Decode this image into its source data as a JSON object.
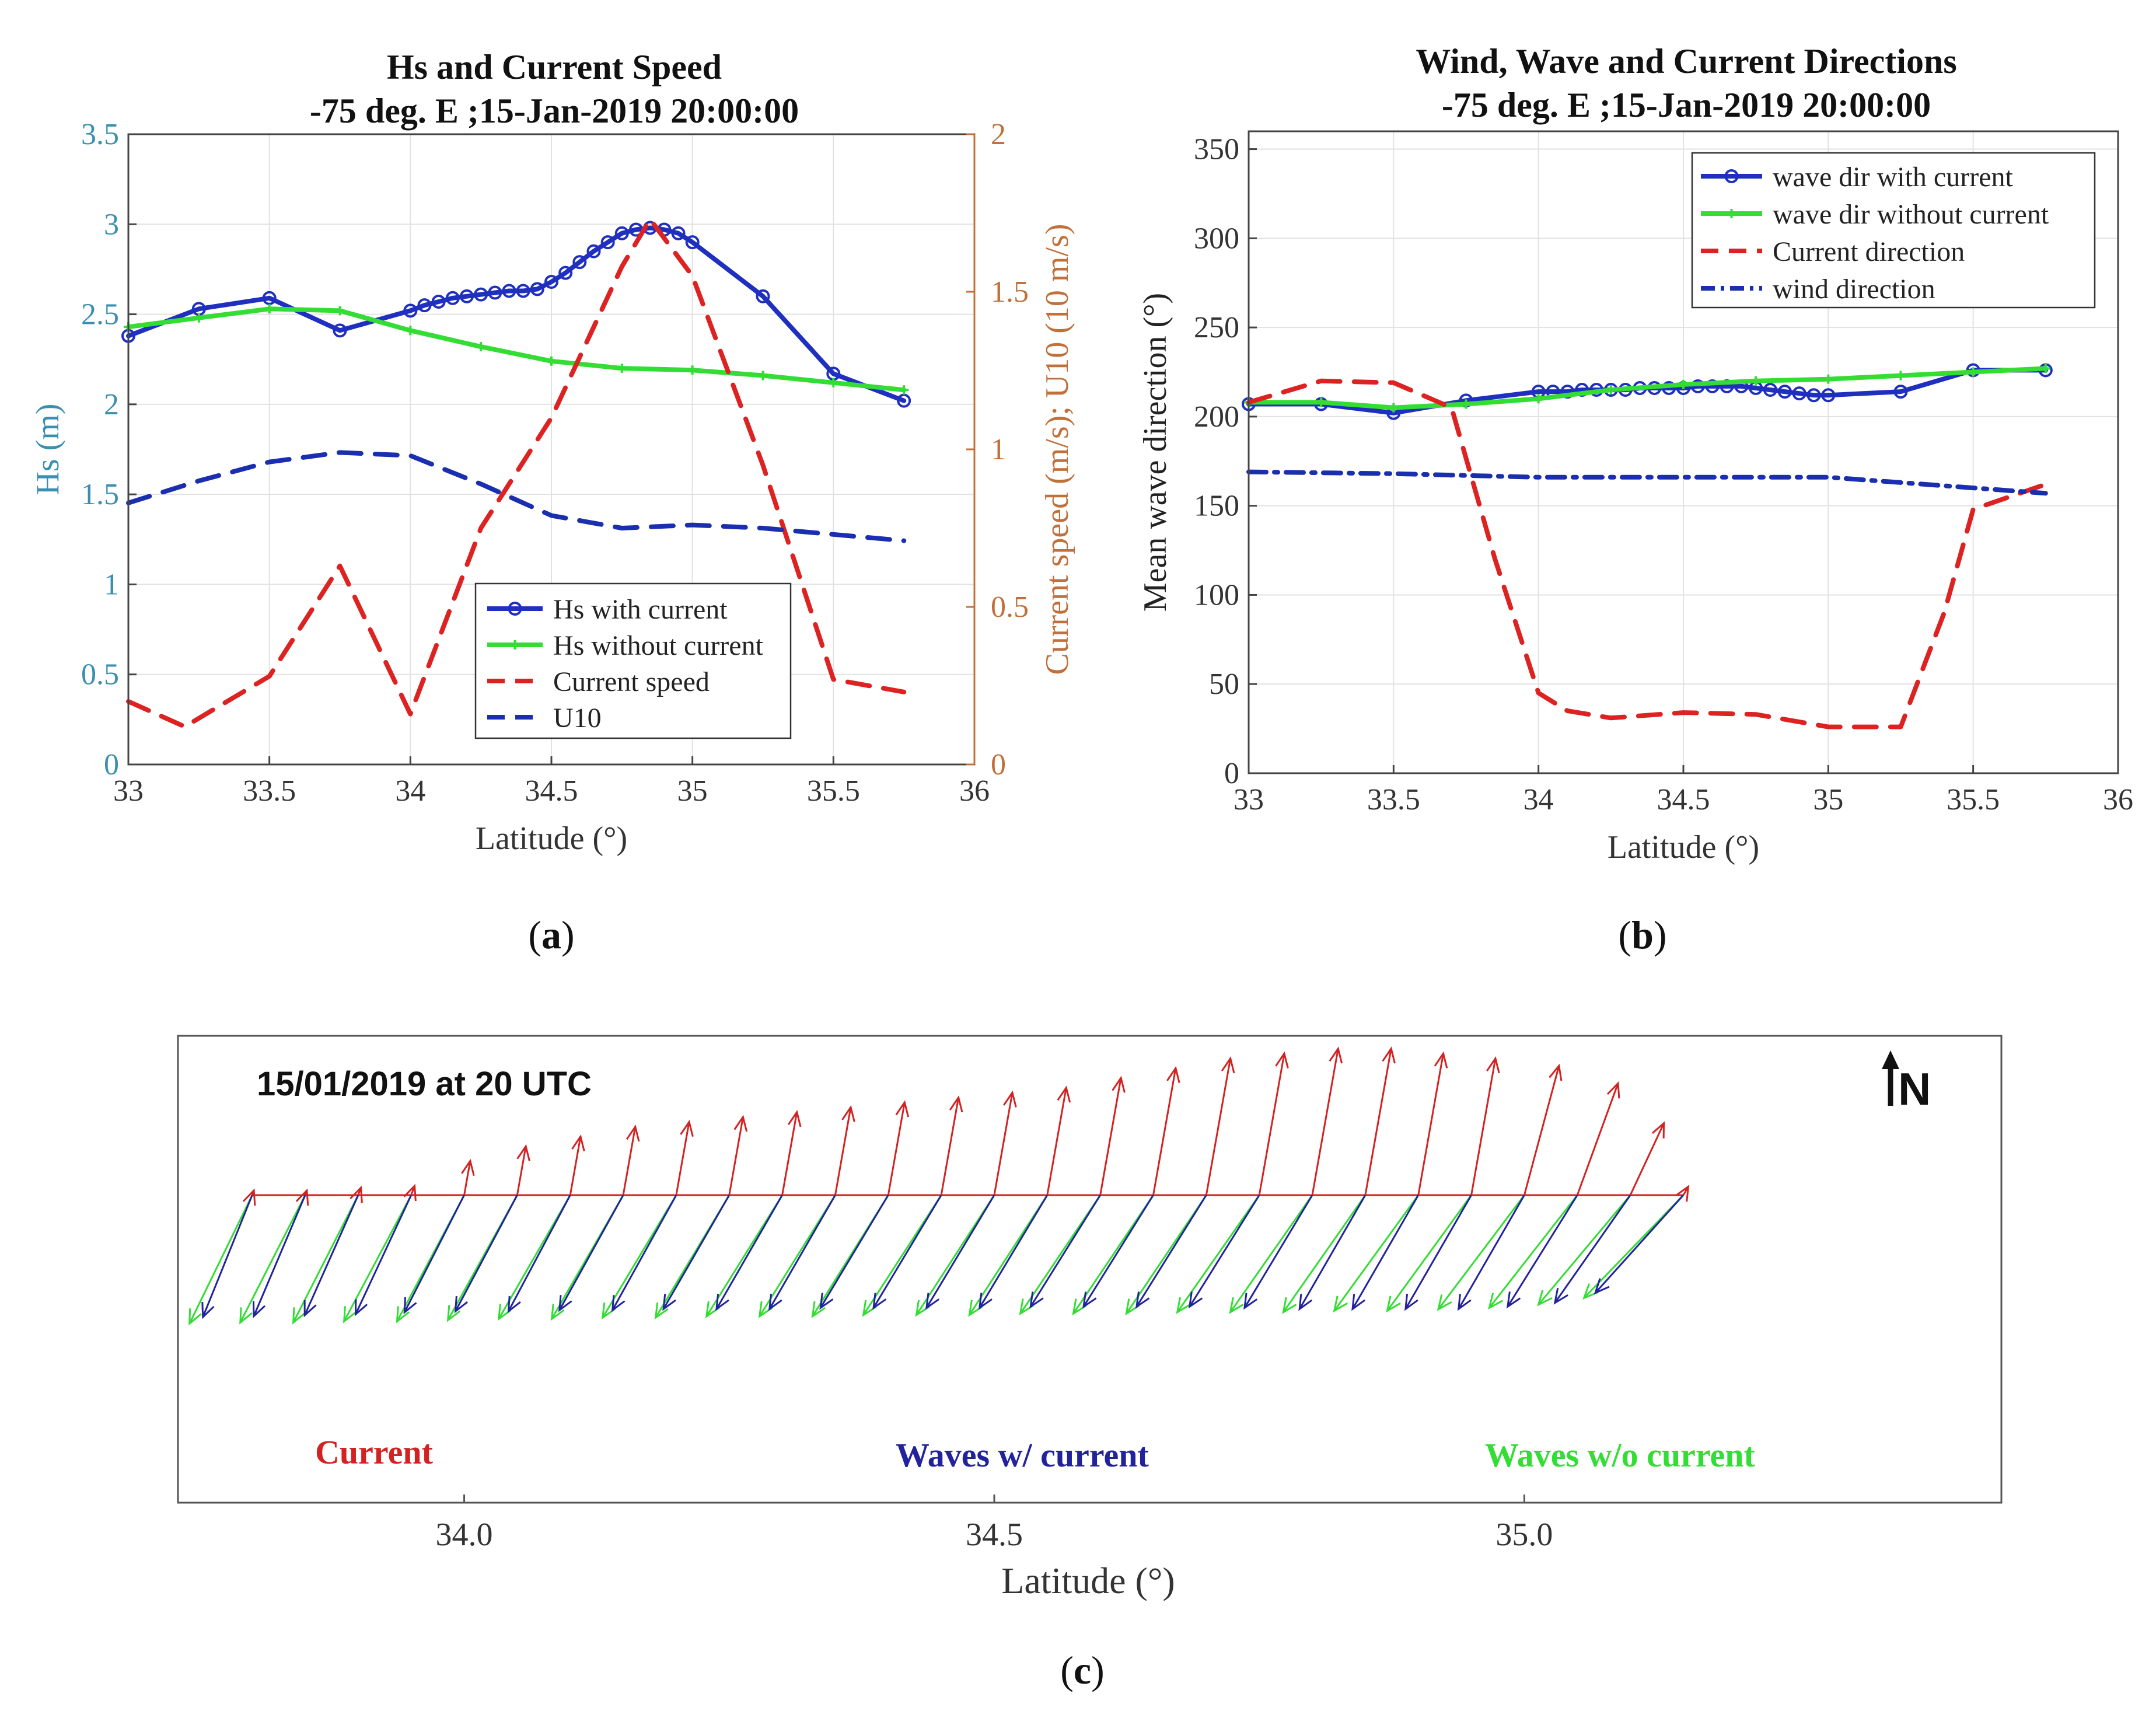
{
  "figure": {
    "label_a": "a",
    "label_b": "b",
    "label_c": "c"
  },
  "chart_data": [
    {
      "id": "a",
      "type": "line",
      "title": "Hs and Current Speed",
      "subtitle": "-75 deg. E ;15-Jan-2019 20:00:00",
      "xlabel": "Latitude (°)",
      "ylabel": "Hs (m)",
      "y2label": "Current speed (m/s); U10 (10 m/s)",
      "xlim": [
        33,
        36
      ],
      "ylim": [
        0,
        3.5
      ],
      "y2lim": [
        0,
        2
      ],
      "xticks": [
        "33",
        "33.5",
        "34",
        "34.5",
        "35",
        "35.5",
        "36"
      ],
      "yticks": [
        "0",
        "0.5",
        "1",
        "1.5",
        "2",
        "2.5",
        "3",
        "3.5"
      ],
      "y2ticks": [
        "0",
        "0.5",
        "1",
        "1.5",
        "2"
      ],
      "grid": true,
      "legend_position": "bottom-right",
      "colors": {
        "axis_left": "#3a8fb0",
        "axis_right": "#c0703a"
      },
      "series": [
        {
          "name": "Hs with current",
          "axis": "left",
          "color": "#1f2fbf",
          "style": "solid-circle",
          "x": [
            33,
            33.25,
            33.5,
            33.75,
            34,
            34.05,
            34.1,
            34.15,
            34.2,
            34.25,
            34.3,
            34.35,
            34.4,
            34.45,
            34.5,
            34.55,
            34.6,
            34.65,
            34.7,
            34.75,
            34.8,
            34.85,
            34.9,
            34.95,
            35,
            35.25,
            35.5,
            35.75
          ],
          "values": [
            2.38,
            2.53,
            2.59,
            2.41,
            2.52,
            2.55,
            2.57,
            2.59,
            2.6,
            2.61,
            2.62,
            2.63,
            2.63,
            2.64,
            2.68,
            2.73,
            2.79,
            2.85,
            2.9,
            2.95,
            2.97,
            2.98,
            2.97,
            2.95,
            2.9,
            2.6,
            2.17,
            2.02
          ]
        },
        {
          "name": "Hs without current",
          "axis": "left",
          "color": "#33dd33",
          "style": "solid-cross",
          "x": [
            33,
            33.25,
            33.5,
            33.75,
            34,
            34.25,
            34.5,
            34.75,
            35,
            35.25,
            35.5,
            35.75
          ],
          "values": [
            2.43,
            2.48,
            2.53,
            2.52,
            2.41,
            2.32,
            2.24,
            2.2,
            2.19,
            2.16,
            2.12,
            2.08
          ]
        },
        {
          "name": "Current speed",
          "axis": "right",
          "color": "#dd2222",
          "style": "dashed",
          "x": [
            33,
            33.2,
            33.5,
            33.75,
            34,
            34.25,
            34.5,
            34.75,
            34.85,
            35,
            35.25,
            35.5,
            35.75
          ],
          "values": [
            0.2,
            0.12,
            0.28,
            0.63,
            0.16,
            0.75,
            1.1,
            1.58,
            1.73,
            1.55,
            0.95,
            0.27,
            0.23
          ]
        },
        {
          "name": "U10",
          "axis": "right",
          "color": "#1a2eb0",
          "style": "dashed",
          "x": [
            33,
            33.25,
            33.5,
            33.75,
            34,
            34.25,
            34.5,
            34.75,
            35,
            35.25,
            35.5,
            35.75
          ],
          "values": [
            0.83,
            0.9,
            0.96,
            0.99,
            0.98,
            0.89,
            0.79,
            0.75,
            0.76,
            0.75,
            0.73,
            0.71
          ]
        }
      ]
    },
    {
      "id": "b",
      "type": "line",
      "title": "Wind, Wave and Current Directions",
      "subtitle": "-75 deg. E ;15-Jan-2019 20:00:00",
      "xlabel": "Latitude (°)",
      "ylabel": "Mean wave direction (°)",
      "xlim": [
        33,
        36
      ],
      "ylim": [
        0,
        360
      ],
      "xticks": [
        "33",
        "33.5",
        "34",
        "34.5",
        "35",
        "35.5",
        "36"
      ],
      "yticks": [
        "0",
        "50",
        "100",
        "150",
        "200",
        "250",
        "300",
        "350"
      ],
      "grid": true,
      "legend_position": "top-right",
      "series": [
        {
          "name": "wave dir with current",
          "color": "#1f2fbf",
          "style": "solid-circle",
          "x": [
            33,
            33.25,
            33.5,
            33.75,
            34,
            34.05,
            34.1,
            34.15,
            34.2,
            34.25,
            34.3,
            34.35,
            34.4,
            34.45,
            34.5,
            34.55,
            34.6,
            34.65,
            34.7,
            34.75,
            34.8,
            34.85,
            34.9,
            34.95,
            35,
            35.25,
            35.5,
            35.75
          ],
          "values": [
            207,
            207,
            202,
            209,
            214,
            214,
            214,
            215,
            215,
            215,
            215,
            216,
            216,
            216,
            216,
            217,
            217,
            217,
            217,
            216,
            215,
            214,
            213,
            212,
            212,
            214,
            226,
            226
          ]
        },
        {
          "name": "wave dir without current",
          "color": "#33dd33",
          "style": "solid-cross",
          "x": [
            33,
            33.25,
            33.5,
            33.75,
            34,
            34.25,
            34.5,
            34.75,
            35,
            35.25,
            35.5,
            35.75
          ],
          "values": [
            208,
            208,
            205,
            207,
            210,
            215,
            218,
            220,
            221,
            223,
            225,
            227
          ]
        },
        {
          "name": "Current direction",
          "color": "#dd2222",
          "style": "dashed",
          "x": [
            33,
            33.25,
            33.5,
            33.7,
            33.85,
            34,
            34.1,
            34.25,
            34.5,
            34.75,
            35,
            35.25,
            35.4,
            35.5,
            35.75
          ],
          "values": [
            208,
            220,
            219,
            205,
            120,
            45,
            35,
            31,
            34,
            33,
            26,
            26,
            90,
            148,
            162
          ]
        },
        {
          "name": "wind direction",
          "color": "#1a2eb0",
          "style": "dashdot",
          "x": [
            33,
            33.5,
            34,
            34.5,
            35,
            35.25,
            35.5,
            35.75
          ],
          "values": [
            169,
            168,
            166,
            166,
            166,
            163,
            160,
            157
          ]
        }
      ]
    },
    {
      "id": "c",
      "type": "vector",
      "title": "15/01/2019 at 20 UTC",
      "xlabel": "Latitude (°)",
      "xticks": [
        "34.0",
        "34.5",
        "35.0"
      ],
      "north_label": "N",
      "xlim": [
        33.73,
        35.45
      ],
      "legend": [
        {
          "name": "Current",
          "color": "#d22222"
        },
        {
          "name": "Waves w/ current",
          "color": "#22229c"
        },
        {
          "name": "Waves w/o current",
          "color": "#33dd33"
        }
      ],
      "vectors": {
        "latitudes": [
          33.8,
          33.85,
          33.9,
          33.95,
          34.0,
          34.05,
          34.1,
          34.15,
          34.2,
          34.25,
          34.3,
          34.35,
          34.4,
          34.45,
          34.5,
          34.55,
          34.6,
          34.65,
          34.7,
          34.75,
          34.8,
          34.85,
          34.9,
          34.95,
          35.0,
          35.05,
          35.1,
          35.15
        ],
        "current_speed": [
          0.05,
          0.05,
          0.08,
          0.1,
          0.35,
          0.5,
          0.6,
          0.7,
          0.75,
          0.8,
          0.85,
          0.9,
          0.95,
          1.0,
          1.05,
          1.1,
          1.2,
          1.3,
          1.4,
          1.45,
          1.5,
          1.5,
          1.45,
          1.4,
          1.35,
          1.2,
          0.8,
          0.1
        ],
        "current_dir": [
          20,
          20,
          20,
          20,
          10,
          10,
          10,
          10,
          10,
          10,
          10,
          10,
          10,
          10,
          10,
          10,
          10,
          10,
          10,
          10,
          10,
          10,
          10,
          10,
          15,
          20,
          25,
          30
        ],
        "wave_dir_with_current": [
          202,
          203,
          204,
          205,
          207,
          208,
          208,
          209,
          209,
          210,
          210,
          210,
          211,
          211,
          211,
          211,
          212,
          212,
          212,
          212,
          211,
          210,
          210,
          210,
          210,
          212,
          215,
          222
        ],
        "wave_dir_without_current": [
          206,
          207,
          207,
          208,
          208,
          209,
          210,
          210,
          211,
          211,
          212,
          212,
          212,
          213,
          213,
          213,
          214,
          214,
          214,
          215,
          215,
          215,
          216,
          216,
          217,
          218,
          220,
          224
        ]
      }
    }
  ]
}
